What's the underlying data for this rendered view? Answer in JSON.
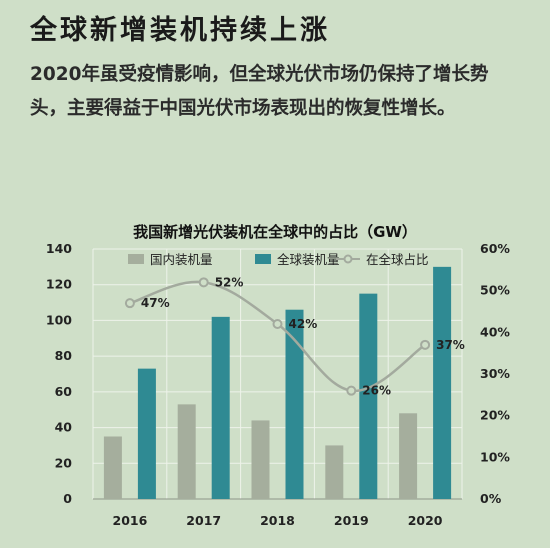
{
  "header": {
    "title": "全球新增装机持续上涨",
    "description": "2020年虽受疫情影响，但全球光伏市场仍保持了增长势头，主要得益于中国光伏市场表现出的恢复性增长。"
  },
  "chart_data": {
    "type": "bar",
    "title": "我国新增光伏装机在全球中的占比（GW）",
    "categories": [
      "2016",
      "2017",
      "2018",
      "2019",
      "2020"
    ],
    "series": [
      {
        "name": "国内装机量",
        "type": "bar",
        "values": [
          35,
          53,
          44,
          30,
          48
        ],
        "color": "#a5ae9d"
      },
      {
        "name": "全球装机量",
        "type": "bar",
        "values": [
          73,
          102,
          106,
          115,
          130
        ],
        "color": "#2f8a93"
      },
      {
        "name": "在全球占比",
        "type": "line",
        "axis": "right",
        "values": [
          47,
          52,
          42,
          26,
          37
        ],
        "labels": [
          "47%",
          "52%",
          "42%",
          "26%",
          "37%"
        ],
        "color": "#a3aa9e"
      }
    ],
    "ylim": [
      0,
      140
    ],
    "yticks": [
      "0",
      "20",
      "40",
      "60",
      "80",
      "100",
      "120",
      "140"
    ],
    "y2lim": [
      0,
      60
    ],
    "y2ticks": [
      "0%",
      "10%",
      "20%",
      "30%",
      "40%",
      "50%",
      "60%"
    ],
    "grid": true,
    "legend_position": "top"
  }
}
